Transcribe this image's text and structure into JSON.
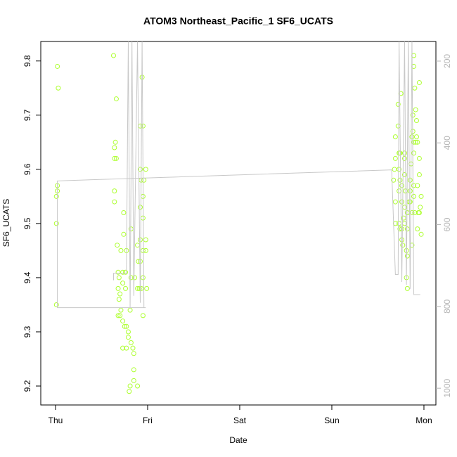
{
  "chart_data": {
    "type": "scatter",
    "title": "ATOM3 Northeast_Pacific_1 SF6_UCATS",
    "x_label": "Date",
    "y_label": "SF6_UCATS",
    "xlim": [
      -0.16,
      4.13
    ],
    "ylim": [
      9.165,
      9.836
    ],
    "y2lim": [
      1041,
      152
    ],
    "xticks": [
      {
        "value": 0,
        "label": "Thu"
      },
      {
        "value": 1,
        "label": "Fri"
      },
      {
        "value": 2,
        "label": "Sat"
      },
      {
        "value": 3,
        "label": "Sun"
      },
      {
        "value": 4,
        "label": "Mon"
      }
    ],
    "yticks": [
      9.2,
      9.3,
      9.4,
      9.5,
      9.6,
      9.7,
      9.8
    ],
    "y2ticks": [
      200,
      400,
      600,
      800,
      1000
    ],
    "series": [
      {
        "style": "points",
        "color": "#adff2f",
        "x": [
          0.02,
          0.03,
          0.02,
          0.02,
          0.01,
          0.01,
          0.01,
          0.63,
          0.66,
          0.65,
          0.64,
          0.64,
          0.66,
          0.64,
          0.64,
          0.74,
          0.67,
          0.71,
          0.68,
          0.73,
          0.76,
          0.69,
          0.73,
          0.68,
          0.76,
          0.7,
          0.69,
          0.71,
          0.68,
          0.7,
          0.73,
          0.75,
          0.77,
          0.79,
          0.79,
          0.73,
          0.77,
          0.84,
          0.85,
          0.82,
          0.85,
          0.85,
          0.81,
          0.89,
          0.8,
          0.74,
          0.77,
          0.82,
          0.82,
          0.86,
          0.89,
          0.91,
          0.93,
          0.81,
          0.9,
          0.92,
          0.95,
          0.98,
          0.98,
          0.92,
          0.89,
          0.92,
          0.95,
          0.95,
          0.93,
          0.96,
          0.92,
          0.98,
          0.92,
          0.95,
          0.94,
          0.99,
          0.95,
          0.95,
          3.67,
          3.68,
          3.69,
          3.69,
          3.69,
          3.69,
          3.72,
          3.72,
          3.73,
          3.74,
          3.73,
          3.74,
          3.73,
          3.73,
          3.74,
          3.76,
          3.75,
          3.76,
          3.76,
          3.77,
          3.78,
          3.79,
          3.79,
          3.79,
          3.79,
          3.8,
          3.81,
          3.81,
          3.82,
          3.82,
          3.82,
          3.82,
          3.84,
          3.85,
          3.85,
          3.85,
          3.86,
          3.87,
          3.87,
          3.88,
          3.88,
          3.89,
          3.89,
          3.89,
          3.89,
          3.89,
          3.89,
          3.9,
          3.9,
          3.91,
          3.91,
          3.92,
          3.92,
          3.93,
          3.93,
          3.94,
          3.93,
          3.95,
          3.95,
          3.95,
          3.95,
          3.96,
          3.97,
          3.97,
          3.79,
          3.76,
          3.82,
          3.87
        ],
        "values": [
          9.79,
          9.75,
          9.57,
          9.56,
          9.55,
          9.5,
          9.35,
          9.81,
          9.73,
          9.65,
          9.64,
          9.62,
          9.62,
          9.56,
          9.54,
          9.52,
          9.46,
          9.45,
          9.41,
          9.41,
          9.41,
          9.4,
          9.39,
          9.38,
          9.38,
          9.37,
          9.36,
          9.34,
          9.33,
          9.33,
          9.32,
          9.31,
          9.31,
          9.3,
          9.29,
          9.27,
          9.27,
          9.27,
          9.26,
          9.28,
          9.23,
          9.21,
          9.2,
          9.2,
          9.19,
          9.48,
          9.45,
          9.49,
          9.4,
          9.4,
          9.38,
          9.38,
          9.38,
          9.34,
          9.43,
          9.43,
          9.45,
          9.45,
          9.47,
          9.47,
          9.46,
          9.53,
          9.51,
          9.55,
          9.58,
          9.58,
          9.6,
          9.6,
          9.68,
          9.68,
          9.77,
          9.38,
          9.4,
          9.33,
          9.58,
          9.6,
          9.54,
          9.5,
          9.62,
          9.66,
          9.68,
          9.72,
          9.63,
          9.63,
          9.6,
          9.58,
          9.56,
          9.5,
          9.49,
          9.54,
          9.74,
          9.57,
          9.47,
          9.46,
          9.51,
          9.53,
          9.62,
          9.63,
          9.59,
          9.56,
          9.45,
          9.4,
          9.52,
          9.52,
          9.44,
          9.38,
          9.54,
          9.58,
          9.54,
          9.56,
          9.61,
          9.46,
          9.66,
          9.67,
          9.7,
          9.81,
          9.79,
          9.65,
          9.63,
          9.57,
          9.55,
          9.52,
          9.75,
          9.71,
          9.65,
          9.66,
          9.69,
          9.65,
          9.57,
          9.52,
          9.49,
          9.76,
          9.62,
          9.59,
          9.52,
          9.53,
          9.48,
          9.55,
          9.5,
          9.49,
          9.49,
          9.52
        ]
      },
      {
        "style": "line",
        "color": "#c8c8c8",
        "axis": "y2",
        "x": [
          0.63,
          0.63,
          0.77,
          0.79,
          0.81,
          0.83,
          0.85,
          0.89,
          0.92,
          0.94,
          0.96,
          0.98,
          0.02,
          0.02,
          3.65,
          3.69,
          3.72,
          3.73,
          3.76,
          3.79,
          3.81,
          3.83,
          3.85,
          3.87,
          3.89,
          3.96
        ],
        "values": [
          736,
          719,
          719,
          152,
          803,
          152,
          774,
          152,
          791,
          152,
          803,
          803,
          803,
          493,
          466,
          722,
          722,
          152,
          740,
          152,
          747,
          152,
          757,
          152,
          771,
          771
        ]
      }
    ]
  }
}
